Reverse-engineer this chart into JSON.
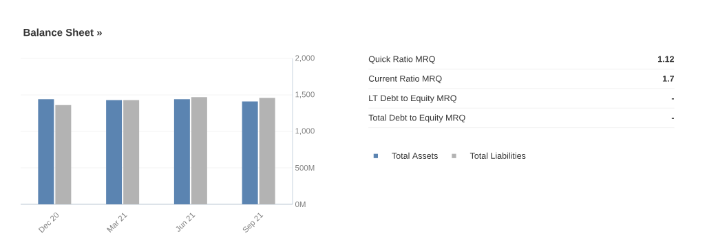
{
  "chart_data": [
    {
      "type": "bar",
      "title": "Balance Sheet »",
      "categories": [
        "Dec 20",
        "Mar 21",
        "Jun 21",
        "Sep 21"
      ],
      "series": [
        {
          "name": "Total Assets",
          "color": "#5b84b1",
          "values": [
            1440,
            1430,
            1440,
            1410
          ]
        },
        {
          "name": "Total Liabilities",
          "color": "#b3b3b3",
          "values": [
            1360,
            1430,
            1470,
            1460
          ]
        }
      ],
      "ylim": [
        0,
        2000
      ],
      "yticks": [
        {
          "value": 0,
          "label": "0M"
        },
        {
          "value": 500,
          "label": "500M"
        },
        {
          "value": 1000,
          "label": "1,000"
        },
        {
          "value": 1500,
          "label": "1,500"
        },
        {
          "value": 2000,
          "label": "2,000"
        }
      ],
      "grid": "y",
      "legend": "right"
    },
    {
      "type": "other",
      "categories": [
        "Quick Ratio MRQ",
        "Current Ratio MRQ",
        "LT Debt to Equity MRQ",
        "Total Debt to Equity MRQ"
      ],
      "value_labels": [
        "1.12",
        "1.7",
        "-",
        "-"
      ]
    }
  ]
}
